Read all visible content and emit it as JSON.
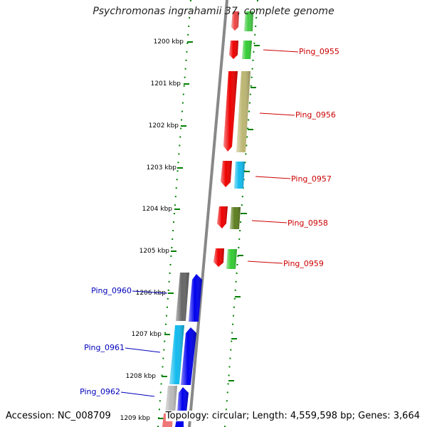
{
  "title": "Psychromonas ingrahamii 37, complete genome",
  "accession": "Accession: NC_008709",
  "topology": "Topology: circular; Length: 4,559,598 bp; Genes: 3,664",
  "colors": {
    "backbone": "#888888",
    "ruler": "#008000",
    "label_right": "#cc0000",
    "label_left": "#0000bb"
  },
  "ruler_ticks": [
    {
      "label": "1200 kbp"
    },
    {
      "label": "1201 kbp"
    },
    {
      "label": "1202 kbp"
    },
    {
      "label": "1203 kbp"
    },
    {
      "label": "1204 kbp"
    },
    {
      "label": "1205 kbp"
    },
    {
      "label": "1206 kbp"
    },
    {
      "label": "1207 kbp"
    },
    {
      "label": "1208 kbp"
    },
    {
      "label": "1209 kbp"
    }
  ],
  "gene_labels_right": [
    {
      "name": "Ping_0955"
    },
    {
      "name": "Ping_0956"
    },
    {
      "name": "Ping_0957"
    },
    {
      "name": "Ping_0958"
    },
    {
      "name": "Ping_0959"
    }
  ],
  "gene_labels_left": [
    {
      "name": "Ping_0960"
    },
    {
      "name": "Ping_0961"
    },
    {
      "name": "Ping_0962"
    }
  ]
}
